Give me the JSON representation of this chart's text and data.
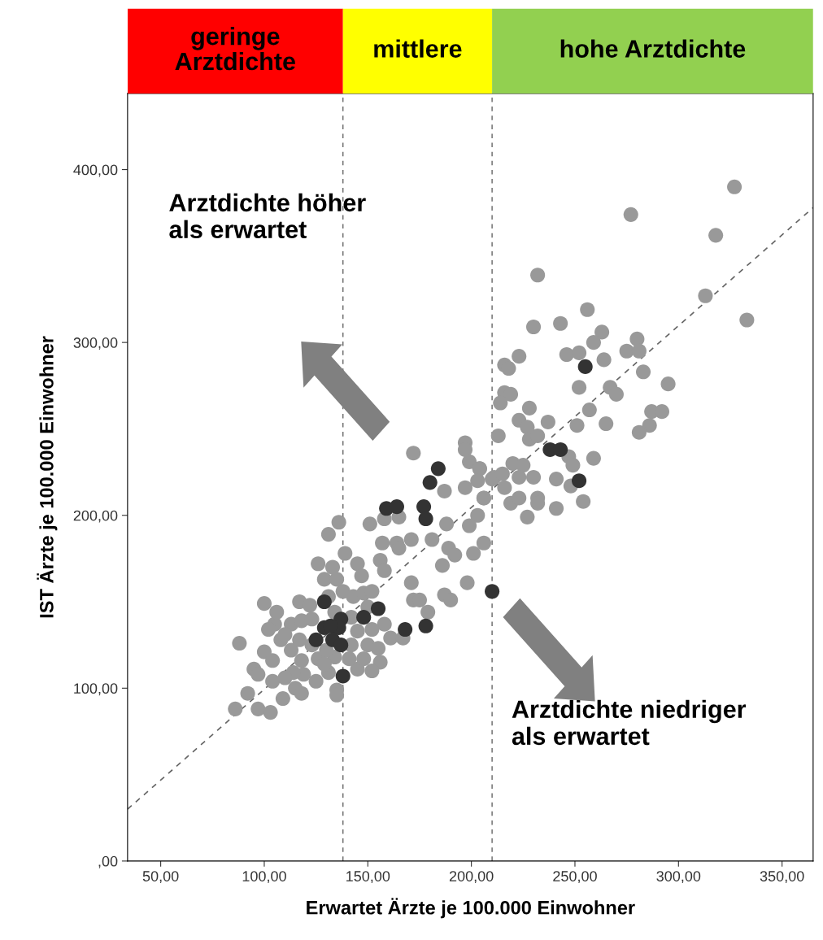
{
  "chart_data": {
    "type": "scatter",
    "xlabel": "Erwartet Ärzte je 100.000 Einwohner",
    "ylabel": "IST Ärzte je 100.000 Einwohner",
    "xlim": [
      34,
      365
    ],
    "ylim": [
      0,
      444
    ],
    "xticks": [
      {
        "value": 50,
        "label": "50,00"
      },
      {
        "value": 100,
        "label": "100,00"
      },
      {
        "value": 150,
        "label": "150,00"
      },
      {
        "value": 200,
        "label": "200,00"
      },
      {
        "value": 250,
        "label": "250,00"
      },
      {
        "value": 300,
        "label": "300,00"
      },
      {
        "value": 350,
        "label": "350,00"
      }
    ],
    "yticks": [
      {
        "value": 0,
        "label": ",00"
      },
      {
        "value": 100,
        "label": "100,00"
      },
      {
        "value": 200,
        "label": "200,00"
      },
      {
        "value": 300,
        "label": "300,00"
      },
      {
        "value": 400,
        "label": "400,00"
      }
    ],
    "grid": false,
    "legend": false,
    "marker": "circle",
    "series": [
      {
        "color": "#999999",
        "x": [
          327,
          277,
          318,
          313,
          333,
          232,
          256,
          230,
          243,
          263,
          259,
          280,
          223,
          246,
          252,
          264,
          275,
          281,
          216,
          218,
          283,
          295,
          252,
          267,
          270,
          216,
          219,
          214,
          228,
          257,
          287,
          292,
          223,
          237,
          227,
          251,
          265,
          286,
          281,
          213,
          228,
          232,
          247,
          259,
          220,
          225,
          249,
          204,
          211,
          223,
          230,
          241,
          248,
          216,
          206,
          219,
          223,
          232,
          232,
          254,
          241,
          227,
          172,
          197,
          197,
          199,
          204,
          187,
          197,
          203,
          206,
          210,
          215,
          203,
          199,
          188,
          181,
          189,
          192,
          186,
          201,
          206,
          171,
          164,
          165,
          157,
          151,
          158,
          165,
          156,
          158,
          171,
          198,
          187,
          190,
          172,
          175,
          179,
          161,
          167,
          156,
          152,
          145,
          136,
          131,
          139,
          126,
          133,
          145,
          147,
          100,
          88,
          100,
          95,
          104,
          104,
          92,
          109,
          86,
          97,
          103,
          135,
          135,
          117,
          122,
          113,
          118,
          123,
          131,
          138,
          143,
          148,
          152,
          150,
          158,
          152,
          145,
          142,
          150,
          155,
          148,
          141,
          134,
          126,
          118,
          113,
          108,
          110,
          105,
          117,
          123,
          130,
          119,
          114,
          125,
          115,
          118,
          110,
          97,
          131,
          129,
          142,
          129,
          135,
          134,
          106,
          102
        ],
        "values": [
          390,
          374,
          362,
          327,
          313,
          339,
          319,
          309,
          311,
          306,
          300,
          302,
          292,
          293,
          294,
          290,
          295,
          295,
          287,
          285,
          283,
          276,
          274,
          274,
          270,
          271,
          270,
          265,
          262,
          261,
          260,
          260,
          255,
          254,
          251,
          252,
          253,
          252,
          248,
          246,
          244,
          246,
          234,
          233,
          230,
          229,
          229,
          227,
          222,
          222,
          222,
          221,
          217,
          216,
          210,
          207,
          210,
          210,
          207,
          208,
          204,
          199,
          236,
          242,
          238,
          231,
          227,
          214,
          216,
          220,
          210,
          221,
          224,
          200,
          194,
          195,
          186,
          181,
          177,
          171,
          178,
          184,
          186,
          184,
          181,
          184,
          195,
          198,
          199,
          174,
          168,
          161,
          161,
          154,
          151,
          151,
          151,
          144,
          129,
          129,
          115,
          110,
          111,
          196,
          189,
          178,
          172,
          170,
          172,
          165,
          149,
          126,
          121,
          111,
          116,
          104,
          97,
          94,
          88,
          88,
          86,
          99,
          96,
          150,
          148,
          137,
          139,
          140,
          153,
          156,
          153,
          155,
          156,
          147,
          137,
          134,
          133,
          125,
          125,
          123,
          117,
          117,
          118,
          117,
          116,
          122,
          128,
          131,
          137,
          128,
          125,
          122,
          108,
          109,
          104,
          100,
          97,
          106,
          108,
          109,
          114,
          141,
          163,
          163,
          144,
          144,
          134
        ]
      },
      {
        "color": "#333333",
        "x": [
          255,
          238,
          243,
          252,
          184,
          180,
          159,
          164,
          177,
          178,
          129,
          155,
          148,
          137,
          136,
          129,
          132,
          125,
          133,
          137,
          168,
          178,
          138,
          210
        ],
        "values": [
          286,
          238,
          238,
          220,
          227,
          219,
          204,
          205,
          205,
          198,
          150,
          146,
          141,
          140,
          135,
          135,
          136,
          128,
          128,
          125,
          134,
          136,
          107,
          156
        ]
      },
      {
        "type": "line",
        "color": "#666666",
        "line_style": "dashed",
        "marker": "none",
        "x": [
          34,
          365
        ],
        "values": [
          30,
          378
        ]
      }
    ],
    "ref_lines": [
      {
        "axis": "x",
        "value": 138,
        "color": "#666666",
        "line_style": "dashed"
      },
      {
        "axis": "x",
        "value": 210,
        "color": "#666666",
        "line_style": "dashed"
      }
    ],
    "annotations": [
      "Arztdichte höher\nals erwartet",
      "Arztdichte niedriger\nals erwartet",
      "geringe\nArztdichte",
      "mittlere",
      "hohe Arztdichte"
    ]
  }
}
